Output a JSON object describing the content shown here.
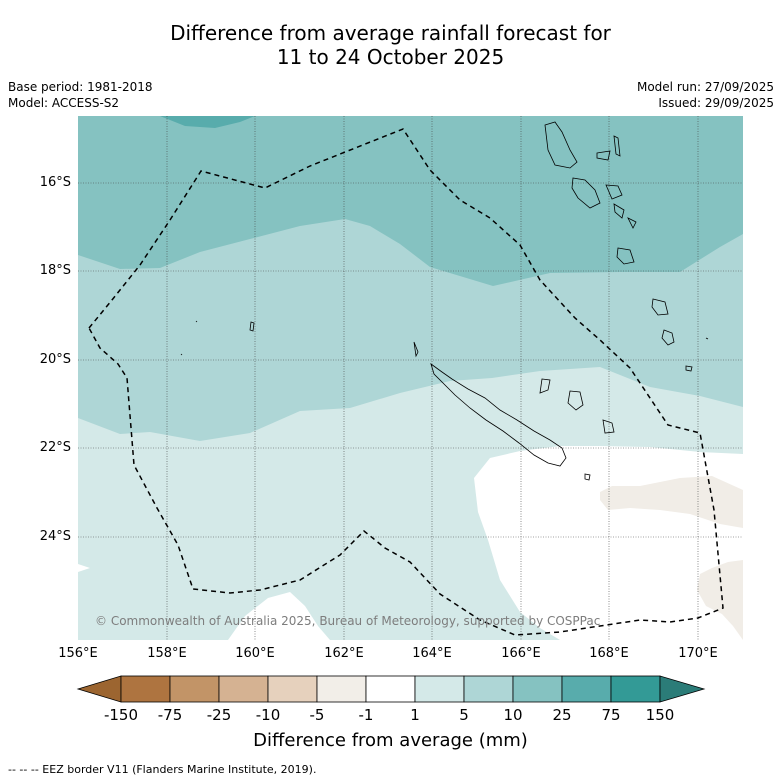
{
  "title": {
    "line1": "Difference from average rainfall forecast for",
    "line2": "11 to 24 October 2025"
  },
  "meta": {
    "base_period": "Base period: 1981-2018",
    "model": "Model: ACCESS-S2",
    "model_run": "Model run: 27/09/2025",
    "issued": "Issued: 29/09/2025"
  },
  "map": {
    "latitude_labels": [
      "16°S",
      "18°S",
      "20°S",
      "22°S",
      "24°S"
    ],
    "longitude_labels": [
      "156°E",
      "158°E",
      "160°E",
      "162°E",
      "164°E",
      "166°E",
      "168°E",
      "170°E"
    ],
    "copyright": "© Commonwealth of Australia 2025, Bureau of Meteorology, supported by COSPPac",
    "colors": {
      "wet_5_10": "#aed6d6",
      "wet_10_25": "#85c2c1",
      "wet_25_75": "#58acac",
      "wet_1_5": "#d4e9e8",
      "dry_minus5_minus1": "#f1ede7"
    }
  },
  "colorbar": {
    "title": "Difference from average (mm)",
    "tick_labels": [
      "-150",
      "-75",
      "-25",
      "-10",
      "-5",
      "-1",
      "1",
      "5",
      "10",
      "25",
      "75",
      "150"
    ],
    "colors": [
      "#9c6530",
      "#ae7440",
      "#c29467",
      "#d5b292",
      "#e6d1bd",
      "#f2eee8",
      "#ffffff",
      "#d4e9e8",
      "#aed6d6",
      "#85c2c1",
      "#58acac",
      "#339a96",
      "#2b7c78"
    ]
  },
  "footer": "--  --  -- EEZ border V11 (Flanders Marine Institute, 2019)."
}
